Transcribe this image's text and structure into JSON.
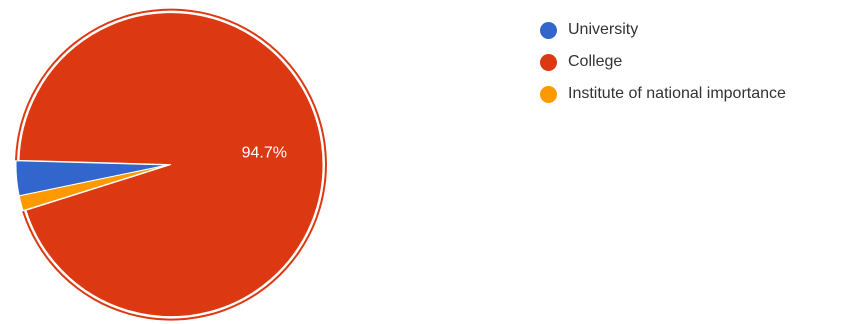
{
  "chart_data": {
    "type": "pie",
    "title": "",
    "categories": [
      "University",
      "College",
      "Institute of national importance"
    ],
    "values": [
      3.7,
      94.7,
      1.6
    ],
    "colors": [
      "#3366cc",
      "#dc3912",
      "#ff9900"
    ],
    "data_labels": [
      "",
      "94.7%",
      ""
    ],
    "exploded_slice": "College",
    "legend_position": "right"
  }
}
